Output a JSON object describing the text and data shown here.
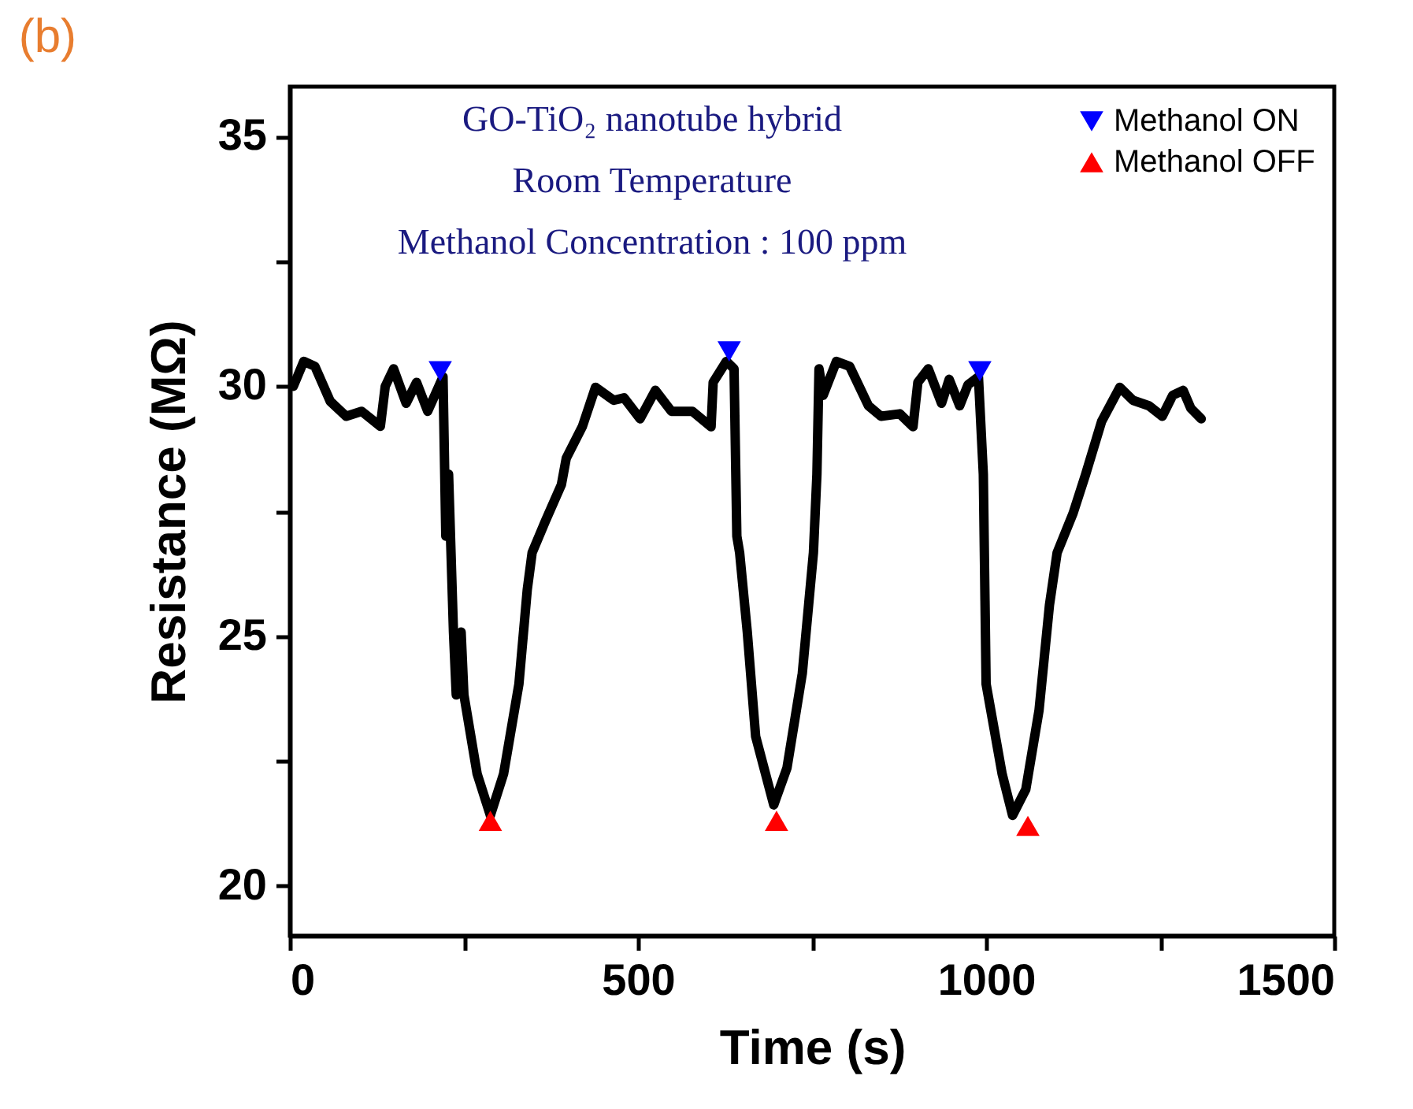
{
  "chart_data": {
    "type": "line",
    "title": "(b)",
    "xlabel": "Time (s)",
    "ylabel": "Resistance (MΩ)",
    "annotations": [
      "GO-TiO₂ nanotube hybrid",
      "Room Temperature",
      "Methanol Concentration : 100 ppm"
    ],
    "xlim": [
      0,
      1500
    ],
    "xticks": [
      0,
      500,
      1000,
      1500,
      {
        "value": 250,
        "label": null
      },
      {
        "value": 750,
        "label": null
      },
      {
        "value": 1250,
        "label": null
      }
    ],
    "ylim": [
      19,
      36
    ],
    "yticks": [
      20,
      25,
      30,
      35,
      {
        "value": 22.5,
        "label": null
      },
      {
        "value": 27.5,
        "label": null
      },
      {
        "value": 32.5,
        "label": null
      }
    ],
    "grid": false,
    "legend": "top right",
    "line_style": "solid",
    "series": [
      {
        "color": "#000000",
        "x": [
          5,
          20,
          36,
          58,
          81,
          103,
          130,
          137,
          149,
          167,
          182,
          198,
          220,
          224,
          228,
          235,
          239,
          246,
          250,
          269,
          288,
          307,
          329,
          341,
          348,
          367,
          390,
          397,
          420,
          439,
          465,
          480,
          503,
          525,
          548,
          578,
          605,
          608,
          627,
          638,
          642,
          646,
          657,
          669,
          695,
          714,
          736,
          752,
          757,
          760,
          766,
          785,
          804,
          831,
          849,
          876,
          895,
          902,
          917,
          936,
          947,
          962,
          974,
          989,
          996,
          1000,
          1023,
          1038,
          1057,
          1076,
          1091,
          1102,
          1125,
          1143,
          1166,
          1192,
          1211,
          1234,
          1253,
          1268,
          1283,
          1294,
          1309
        ],
        "values": [
          30.0,
          30.5,
          30.4,
          29.7,
          29.4,
          29.5,
          29.2,
          30.0,
          30.35,
          29.66,
          30.08,
          29.5,
          30.19,
          27.0,
          28.24,
          25.08,
          23.82,
          25.08,
          23.82,
          22.24,
          21.41,
          22.24,
          24.04,
          25.93,
          26.67,
          27.3,
          28.03,
          28.56,
          29.19,
          29.98,
          29.72,
          29.77,
          29.35,
          29.92,
          29.5,
          29.5,
          29.19,
          30.08,
          30.5,
          30.35,
          27.0,
          26.67,
          25.08,
          22.99,
          21.62,
          22.36,
          24.25,
          26.67,
          28.24,
          30.35,
          29.82,
          30.5,
          30.4,
          29.61,
          29.4,
          29.45,
          29.19,
          30.08,
          30.35,
          29.66,
          30.14,
          29.61,
          30.03,
          30.19,
          28.24,
          24.04,
          22.24,
          21.41,
          21.93,
          23.51,
          25.62,
          26.67,
          27.46,
          28.24,
          29.3,
          29.98,
          29.72,
          29.61,
          29.4,
          29.82,
          29.92,
          29.56,
          29.35
        ]
      },
      {
        "type": "scatter",
        "marker": "triangle",
        "name": "Methanol ON",
        "color": "#0000ff",
        "x": [
          216,
          631,
          991
        ],
        "values": [
          30.3,
          30.7,
          30.3
        ]
      },
      {
        "type": "scatter",
        "marker": "triangle",
        "name": "Methanol OFF",
        "color": "#ff0000",
        "x": [
          288,
          699,
          1060
        ],
        "values": [
          21.3,
          21.3,
          21.2
        ]
      }
    ]
  }
}
